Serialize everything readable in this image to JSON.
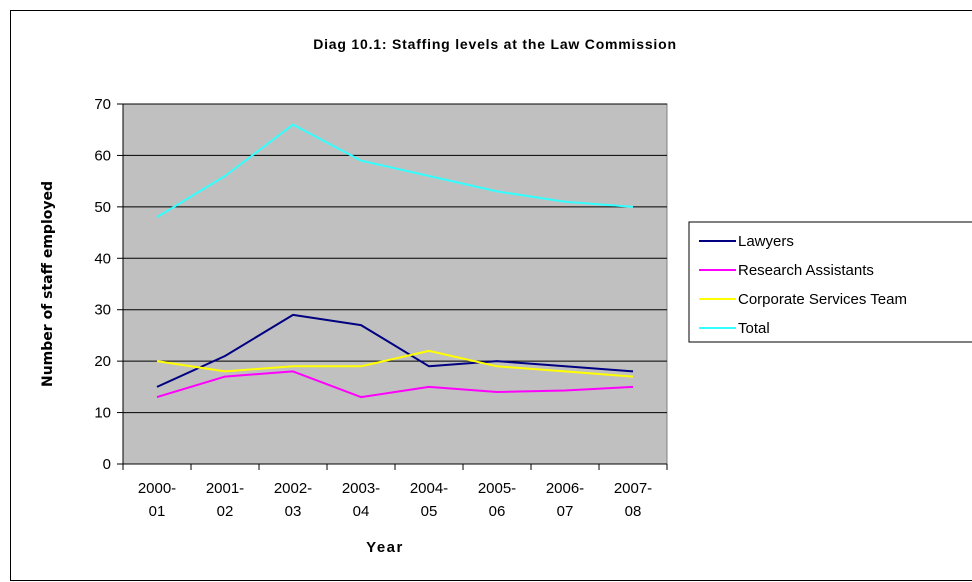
{
  "chart_data": {
    "type": "line",
    "title": "Diag 10.1: Staffing levels at the Law Commission",
    "xlabel": "Year",
    "ylabel": "Number of staff employed",
    "categories": [
      [
        "2000-",
        "01"
      ],
      [
        "2001-",
        "02"
      ],
      [
        "2002-",
        "03"
      ],
      [
        "2003-",
        "04"
      ],
      [
        "2004-",
        "05"
      ],
      [
        "2005-",
        "06"
      ],
      [
        "2006-",
        "07"
      ],
      [
        "2007-",
        "08"
      ]
    ],
    "ylim": [
      0,
      70
    ],
    "yticks": [
      0,
      10,
      20,
      30,
      40,
      50,
      60,
      70
    ],
    "grid": true,
    "plot_background": "#C0C0C0",
    "legend_position": "right",
    "series": [
      {
        "name": "Lawyers",
        "color": "#000080",
        "values": [
          15,
          21,
          29,
          27,
          19,
          20,
          19,
          18
        ]
      },
      {
        "name": "Research Assistants",
        "color": "#FF00FF",
        "values": [
          13,
          17,
          18,
          13,
          15,
          14,
          14.3,
          15
        ]
      },
      {
        "name": "Corporate Services Team",
        "color": "#FFFF00",
        "values": [
          20,
          18,
          19,
          19,
          22,
          19,
          18,
          17
        ]
      },
      {
        "name": "Total",
        "color": "#33FFFF",
        "values": [
          48,
          56,
          66,
          59,
          56,
          53,
          51,
          50
        ]
      }
    ]
  }
}
